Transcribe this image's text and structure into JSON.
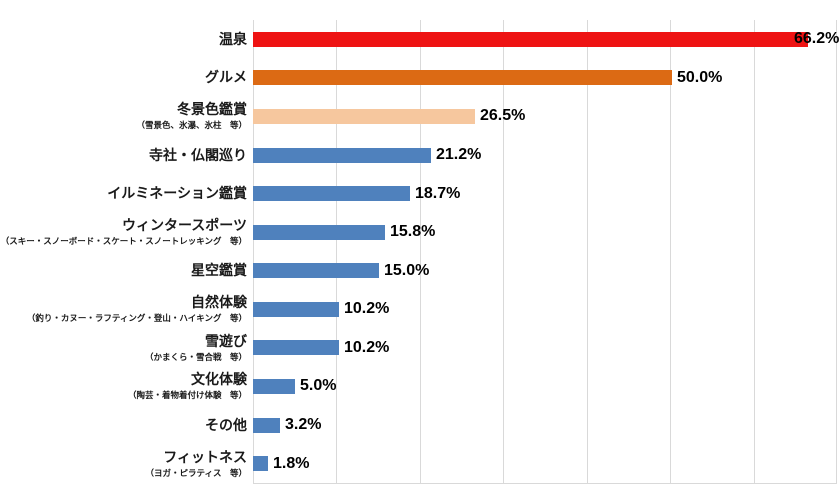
{
  "chart_data": {
    "type": "bar",
    "orientation": "horizontal",
    "title": "",
    "xlabel": "",
    "ylabel": "",
    "xlim": [
      0,
      70
    ],
    "gridline_step": 10,
    "grid": true,
    "legend": false,
    "value_suffix": "%",
    "categories": [
      "温泉",
      "グルメ",
      "冬景色鑑賞",
      "寺社・仏閣巡り",
      "イルミネーション鑑賞",
      "ウィンタースポーツ",
      "星空鑑賞",
      "自然体験",
      "雪遊び",
      "文化体験",
      "その他",
      "フィットネス"
    ],
    "subcategories": [
      "",
      "",
      "（雪景色、氷瀑、氷柱　等）",
      "",
      "",
      "（スキー・スノーボード・スケート・スノートレッキング　等）",
      "",
      "（釣り・カヌー・ラフティング・登山・ハイキング　等）",
      "（かまくら・雪合戦　等）",
      "（陶芸・着物着付け体験　等）",
      "",
      "（ヨガ・ピラティス　等）"
    ],
    "values": [
      66.2,
      50.0,
      26.5,
      21.2,
      18.7,
      15.8,
      15.0,
      10.2,
      10.2,
      5.0,
      3.2,
      1.8
    ],
    "value_labels": [
      "66.2%",
      "50.0%",
      "26.5%",
      "21.2%",
      "18.7%",
      "15.8%",
      "15.0%",
      "10.2%",
      "10.2%",
      "5.0%",
      "3.2%",
      "1.8%"
    ],
    "bar_colors": [
      "#ee1313",
      "#dc6a14",
      "#f6c79e",
      "#4f81bd",
      "#4f81bd",
      "#4f81bd",
      "#4f81bd",
      "#4f81bd",
      "#4f81bd",
      "#4f81bd",
      "#4f81bd",
      "#4f81bd"
    ]
  },
  "colors": {
    "accent_red": "#ee1313",
    "accent_orange": "#dc6a14",
    "accent_peach": "#f6c79e",
    "accent_blue": "#4f81bd",
    "gridline": "#d9d9d9",
    "text": "#1a1a1a",
    "background": "#ffffff"
  }
}
